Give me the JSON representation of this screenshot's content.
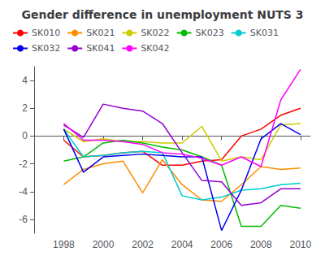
{
  "chart_data": {
    "type": "line",
    "title": "Gender difference in unemployment NUTS 3",
    "x": [
      1998,
      1999,
      2000,
      2001,
      2002,
      2003,
      2004,
      2005,
      2006,
      2007,
      2008,
      2009,
      2010
    ],
    "series": [
      {
        "name": "SK010",
        "color": "#FF0000",
        "values": [
          -0.3,
          -1.5,
          -1.4,
          -1.2,
          -1.1,
          -2.1,
          -2.1,
          -1.8,
          -1.7,
          0.0,
          0.5,
          1.5,
          2.0
        ]
      },
      {
        "name": "SK021",
        "color": "#FF8C00",
        "values": [
          -3.5,
          -2.4,
          -2.0,
          -1.8,
          -4.1,
          -1.7,
          -3.5,
          -4.6,
          -4.7,
          -3.5,
          -2.2,
          -2.4,
          -2.3
        ]
      },
      {
        "name": "SK022",
        "color": "#CCCC00",
        "values": [
          0.5,
          -0.4,
          -0.2,
          -0.4,
          -0.4,
          -0.5,
          -0.5,
          0.7,
          -1.8,
          -1.5,
          -1.7,
          0.8,
          0.9
        ]
      },
      {
        "name": "SK023",
        "color": "#00BB00",
        "values": [
          -1.8,
          -1.5,
          -0.5,
          -0.3,
          -0.5,
          -0.8,
          -1.0,
          -1.5,
          -2.1,
          -6.5,
          -6.5,
          -5.0,
          -5.2
        ]
      },
      {
        "name": "SK031",
        "color": "#00CCCC",
        "values": [
          0.5,
          -1.5,
          -1.4,
          -1.2,
          -1.1,
          -1.2,
          -4.3,
          -4.6,
          -4.4,
          -3.9,
          -3.8,
          -3.5,
          -3.4
        ]
      },
      {
        "name": "SK032",
        "color": "#0000EE",
        "values": [
          0.5,
          -2.6,
          -1.5,
          -1.4,
          -1.3,
          -1.4,
          -1.5,
          -1.5,
          -6.8,
          -3.9,
          -0.2,
          0.9,
          0.1
        ]
      },
      {
        "name": "SK041",
        "color": "#9400D3",
        "values": [
          0.8,
          -0.1,
          2.3,
          2.0,
          1.8,
          0.9,
          -1.2,
          -3.2,
          -3.3,
          -5.0,
          -4.8,
          -3.8,
          -3.8
        ]
      },
      {
        "name": "SK042",
        "color": "#FF00FF",
        "values": [
          0.9,
          -0.3,
          -0.3,
          -0.4,
          -0.6,
          -1.2,
          -1.3,
          -1.6,
          -2.1,
          -1.5,
          -2.2,
          2.6,
          4.8
        ]
      }
    ],
    "xlim": [
      1996.5,
      2010.5
    ],
    "xticks": [
      1998,
      2000,
      2002,
      2004,
      2006,
      2008,
      2010
    ],
    "ylim": [
      -7,
      5
    ],
    "yticks": [
      -6,
      -4,
      -2,
      0,
      2,
      4
    ],
    "grid": false,
    "legend": "upper left"
  }
}
